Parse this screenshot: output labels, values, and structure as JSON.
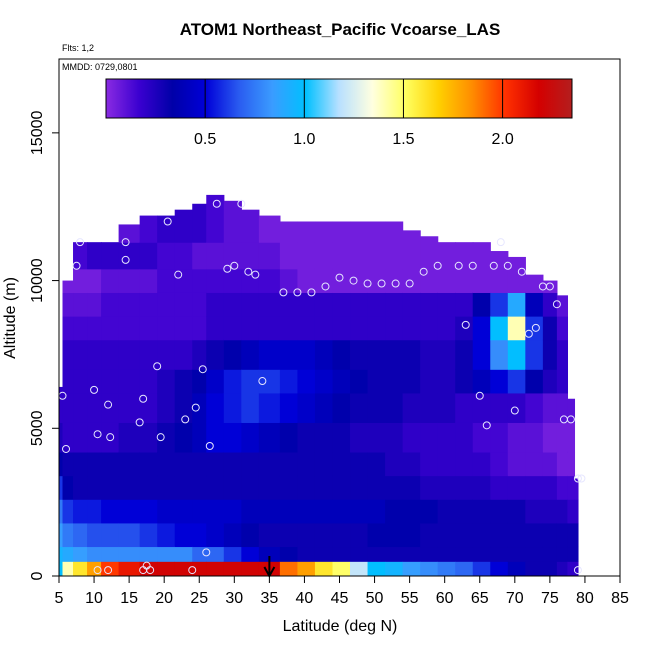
{
  "chart_data": {
    "type": "heatmap",
    "title": "ATOM1 Northeast_Pacific Vcoarse_LAS",
    "flights_note": "Flts: 1,2",
    "date_note": "MMDD: 0729,0801",
    "xlabel": "Latitude (deg N)",
    "ylabel": "Altitude (m)",
    "xlim": [
      5,
      85
    ],
    "ylim": [
      0,
      17500
    ],
    "x_ticks": [
      5,
      10,
      15,
      20,
      25,
      30,
      35,
      40,
      45,
      50,
      55,
      60,
      65,
      70,
      75,
      80,
      85
    ],
    "y_ticks": [
      0,
      5000,
      10000,
      15000
    ],
    "colorbar": {
      "min": 0.0,
      "max": 2.35,
      "ticks": [
        0.5,
        1.0,
        1.5,
        2.0
      ],
      "tick_labels": [
        "0.5",
        "1.0",
        "1.5",
        "2.0"
      ],
      "colors": [
        "#8a2be2",
        "#3a00d0",
        "#0000a8",
        "#0000d8",
        "#2a5cf0",
        "#3a9cff",
        "#00c0ff",
        "#b8e0ff",
        "#ffffe0",
        "#ffff60",
        "#ffd000",
        "#ff8c00",
        "#ff3000",
        "#d40000",
        "#b41e1e"
      ]
    },
    "arrow_latitude": 35,
    "profile_lat": [
      5,
      6,
      8,
      10,
      12,
      15,
      18,
      20,
      23,
      25,
      27,
      30,
      32,
      35,
      38,
      40,
      43,
      45,
      48,
      50,
      53,
      55,
      58,
      60,
      63,
      65,
      68,
      70,
      73,
      75,
      77,
      78,
      79
    ],
    "top_altitude": [
      6400,
      10000,
      11300,
      11300,
      11300,
      11900,
      12200,
      12200,
      12400,
      12600,
      12900,
      12700,
      12400,
      12200,
      12000,
      12000,
      12000,
      12000,
      12000,
      12000,
      12000,
      11700,
      11500,
      11300,
      11300,
      11300,
      11000,
      10800,
      10200,
      10000,
      9500,
      6000,
      3300
    ],
    "bands": [
      {
        "z": [
          0,
          500
        ],
        "value": [
          1.0,
          1.4,
          1.6,
          1.8,
          2.0,
          2.1,
          2.2,
          2.2,
          2.2,
          2.2,
          2.2,
          2.2,
          2.2,
          2.2,
          1.9,
          1.8,
          1.6,
          1.5,
          1.2,
          1.0,
          0.95,
          0.85,
          0.8,
          0.75,
          0.7,
          0.6,
          0.5,
          0.4,
          0.3,
          0.3,
          0.25,
          0.2,
          0.2
        ]
      },
      {
        "z": [
          500,
          1000
        ],
        "value": [
          0.95,
          0.9,
          0.85,
          0.8,
          0.8,
          0.8,
          0.8,
          0.8,
          0.8,
          0.7,
          0.7,
          0.6,
          0.5,
          0.4,
          0.35,
          0.3,
          0.3,
          0.3,
          0.3,
          0.3,
          0.3,
          0.3,
          0.3,
          0.3,
          0.3,
          0.3,
          0.3,
          0.3,
          0.3,
          0.3,
          0.3,
          0.3,
          0.3
        ]
      },
      {
        "z": [
          1000,
          1800
        ],
        "value": [
          0.85,
          0.75,
          0.7,
          0.65,
          0.65,
          0.65,
          0.6,
          0.55,
          0.5,
          0.5,
          0.45,
          0.4,
          0.35,
          0.3,
          0.3,
          0.3,
          0.3,
          0.3,
          0.3,
          0.35,
          0.35,
          0.35,
          0.3,
          0.3,
          0.3,
          0.3,
          0.3,
          0.3,
          0.3,
          0.3,
          0.3,
          0.3,
          0.3
        ]
      },
      {
        "z": [
          1800,
          2600
        ],
        "value": [
          0.75,
          0.6,
          0.55,
          0.55,
          0.5,
          0.5,
          0.5,
          0.45,
          0.45,
          0.45,
          0.45,
          0.45,
          0.4,
          0.4,
          0.4,
          0.4,
          0.4,
          0.4,
          0.4,
          0.4,
          0.35,
          0.35,
          0.35,
          0.3,
          0.3,
          0.3,
          0.3,
          0.3,
          0.25,
          0.25,
          0.25,
          0.2,
          0.2
        ]
      },
      {
        "z": [
          2600,
          3400
        ],
        "value": [
          0.6,
          0.35,
          0.3,
          0.3,
          0.3,
          0.3,
          0.3,
          0.3,
          0.3,
          0.3,
          0.3,
          0.3,
          0.3,
          0.3,
          0.3,
          0.3,
          0.3,
          0.3,
          0.3,
          0.3,
          0.3,
          0.3,
          0.25,
          0.25,
          0.25,
          0.25,
          0.2,
          0.2,
          0.2,
          0.2,
          0.15,
          0.15,
          0.15
        ]
      },
      {
        "z": [
          3400,
          4200
        ],
        "value": [
          0.35,
          0.3,
          0.3,
          0.3,
          0.3,
          0.3,
          0.3,
          0.3,
          0.3,
          0.3,
          0.3,
          0.3,
          0.3,
          0.3,
          0.3,
          0.3,
          0.3,
          0.3,
          0.3,
          0.3,
          0.25,
          0.25,
          0.2,
          0.2,
          0.2,
          0.2,
          0.15,
          0.1,
          0.1,
          0.1,
          0.05,
          0.05,
          0.05
        ]
      },
      {
        "z": [
          4200,
          5200
        ],
        "value": [
          0.25,
          0.2,
          0.2,
          0.2,
          0.2,
          0.25,
          0.25,
          0.3,
          0.35,
          0.4,
          0.5,
          0.5,
          0.45,
          0.4,
          0.35,
          0.3,
          0.3,
          0.3,
          0.25,
          0.25,
          0.25,
          0.2,
          0.2,
          0.2,
          0.2,
          0.15,
          0.15,
          0.1,
          0.1,
          0.05,
          0.05,
          0.05,
          0.05
        ]
      },
      {
        "z": [
          5200,
          6200
        ],
        "value": [
          0.2,
          0.2,
          0.2,
          0.2,
          0.2,
          0.2,
          0.2,
          0.25,
          0.3,
          0.4,
          0.5,
          0.55,
          0.6,
          0.55,
          0.5,
          0.45,
          0.4,
          0.35,
          0.3,
          0.3,
          0.3,
          0.25,
          0.25,
          0.25,
          0.2,
          0.2,
          0.2,
          0.2,
          0.15,
          0.1,
          0.1,
          0.1,
          0.1
        ]
      },
      {
        "z": [
          6200,
          7000
        ],
        "value": [
          0.2,
          0.2,
          0.2,
          0.2,
          0.2,
          0.2,
          0.2,
          0.25,
          0.3,
          0.35,
          0.45,
          0.55,
          0.6,
          0.6,
          0.55,
          0.5,
          0.45,
          0.4,
          0.35,
          0.3,
          0.3,
          0.3,
          0.25,
          0.25,
          0.3,
          0.4,
          0.5,
          0.6,
          0.35,
          0.25,
          0.2,
          0.1,
          0.1
        ]
      },
      {
        "z": [
          7000,
          8000
        ],
        "value": [
          0.2,
          0.2,
          0.2,
          0.2,
          0.2,
          0.2,
          0.2,
          0.2,
          0.2,
          0.25,
          0.3,
          0.35,
          0.4,
          0.45,
          0.45,
          0.45,
          0.4,
          0.35,
          0.3,
          0.3,
          0.3,
          0.3,
          0.25,
          0.25,
          0.3,
          0.5,
          0.8,
          1.0,
          0.6,
          0.3,
          0.2,
          0.1,
          0.1
        ]
      },
      {
        "z": [
          8000,
          8800
        ],
        "value": [
          0.15,
          0.15,
          0.15,
          0.15,
          0.15,
          0.15,
          0.15,
          0.15,
          0.15,
          0.15,
          0.2,
          0.2,
          0.2,
          0.2,
          0.2,
          0.2,
          0.2,
          0.2,
          0.2,
          0.2,
          0.2,
          0.2,
          0.2,
          0.2,
          0.25,
          0.5,
          1.0,
          1.4,
          0.6,
          0.3,
          0.15,
          0.1,
          0.1
        ]
      },
      {
        "z": [
          8800,
          9600
        ],
        "value": [
          0.1,
          0.1,
          0.1,
          0.1,
          0.15,
          0.15,
          0.15,
          0.15,
          0.15,
          0.15,
          0.2,
          0.2,
          0.2,
          0.2,
          0.2,
          0.2,
          0.2,
          0.2,
          0.2,
          0.2,
          0.2,
          0.2,
          0.2,
          0.2,
          0.2,
          0.35,
          0.6,
          0.9,
          0.4,
          0.2,
          0.1,
          0.05,
          0.05
        ]
      },
      {
        "z": [
          9600,
          10400
        ],
        "value": [
          0.05,
          0.05,
          0.05,
          0.05,
          0.1,
          0.1,
          0.1,
          0.15,
          0.15,
          0.15,
          0.15,
          0.15,
          0.15,
          0.15,
          0.1,
          0.05,
          0.05,
          0.05,
          0.05,
          0.05,
          0.05,
          0.05,
          0.05,
          0.05,
          0.05,
          0.05,
          0.05,
          0.05,
          0.05,
          0.05,
          0.05,
          0.05,
          0.05
        ]
      },
      {
        "z": [
          10400,
          11300
        ],
        "value": [
          0.05,
          0.1,
          0.15,
          0.2,
          0.2,
          0.2,
          0.2,
          0.15,
          0.15,
          0.1,
          0.1,
          0.1,
          0.1,
          0.1,
          0.05,
          0.05,
          0.05,
          0.05,
          0.05,
          0.05,
          0.05,
          0.05,
          0.05,
          0.05,
          0.05,
          0.05,
          0.05,
          0.05,
          0.05,
          0.05,
          0.05,
          0.05,
          0.05
        ]
      },
      {
        "z": [
          11300,
          13000
        ],
        "value": [
          0.05,
          0.05,
          0.05,
          0.05,
          0.05,
          0.1,
          0.15,
          0.2,
          0.2,
          0.2,
          0.15,
          0.1,
          0.1,
          0.05,
          0.05,
          0.05,
          0.05,
          0.05,
          0.05,
          0.05,
          0.05,
          0.05,
          0.05,
          0.05,
          0.05,
          0.05,
          0.05,
          0.05,
          0.05,
          0.05,
          0.05,
          0.05,
          0.05
        ]
      }
    ],
    "sample_points": [
      [
        5.5,
        6100
      ],
      [
        6,
        4300
      ],
      [
        7.5,
        10500
      ],
      [
        8,
        11300
      ],
      [
        10,
        6300
      ],
      [
        10.5,
        4800
      ],
      [
        12,
        5800
      ],
      [
        12.3,
        4700
      ],
      [
        14.5,
        10700
      ],
      [
        14.5,
        11300
      ],
      [
        16.5,
        5200
      ],
      [
        17,
        6000
      ],
      [
        19,
        7100
      ],
      [
        19.5,
        4700
      ],
      [
        20.5,
        12000
      ],
      [
        22,
        10200
      ],
      [
        23,
        5300
      ],
      [
        24.5,
        5700
      ],
      [
        25.5,
        7000
      ],
      [
        26.5,
        4400
      ],
      [
        27.5,
        12600
      ],
      [
        29,
        10400
      ],
      [
        30,
        10500
      ],
      [
        31,
        12600
      ],
      [
        32,
        10300
      ],
      [
        33,
        10200
      ],
      [
        34,
        6600
      ],
      [
        37,
        9600
      ],
      [
        39,
        9600
      ],
      [
        41,
        9600
      ],
      [
        43,
        9800
      ],
      [
        45,
        10100
      ],
      [
        47,
        10000
      ],
      [
        49,
        9900
      ],
      [
        51,
        9900
      ],
      [
        53,
        9900
      ],
      [
        55,
        9900
      ],
      [
        57,
        10300
      ],
      [
        59,
        10500
      ],
      [
        62,
        10500
      ],
      [
        63,
        8500
      ],
      [
        64,
        10500
      ],
      [
        65,
        6100
      ],
      [
        66,
        5100
      ],
      [
        67,
        10500
      ],
      [
        68,
        11300
      ],
      [
        69,
        10500
      ],
      [
        70,
        5600
      ],
      [
        71,
        10300
      ],
      [
        72,
        8200
      ],
      [
        73,
        8400
      ],
      [
        74,
        9800
      ],
      [
        75,
        9800
      ],
      [
        76,
        9200
      ],
      [
        77,
        5300
      ],
      [
        78,
        5300
      ],
      [
        79,
        3300
      ],
      [
        79.5,
        3300
      ],
      [
        79,
        200
      ],
      [
        10.5,
        200
      ],
      [
        12,
        200
      ],
      [
        17,
        200
      ],
      [
        17.5,
        350
      ],
      [
        18,
        200
      ],
      [
        24,
        200
      ],
      [
        26,
        800
      ]
    ]
  }
}
